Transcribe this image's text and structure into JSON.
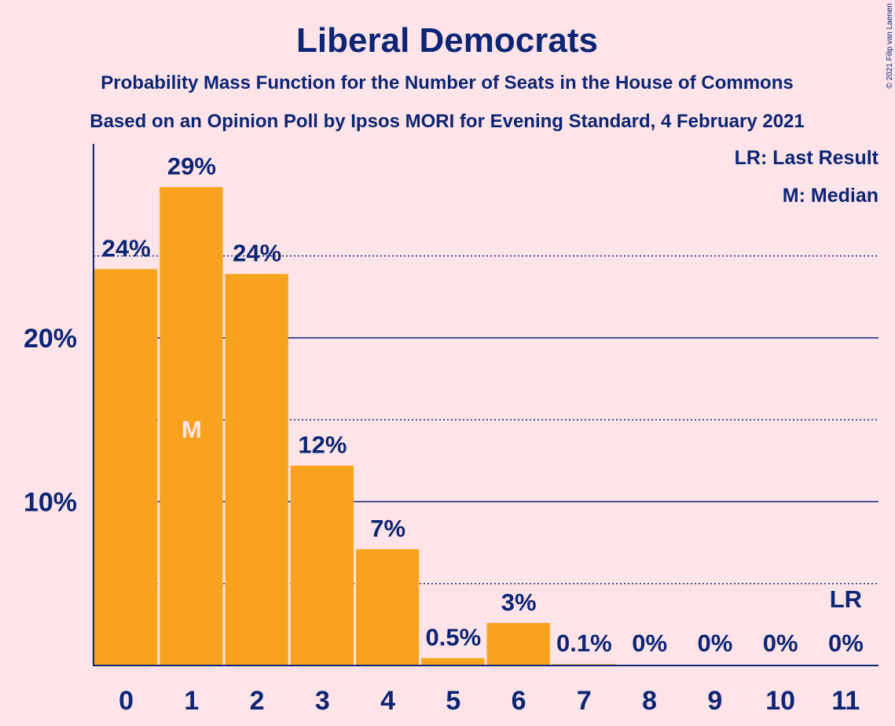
{
  "colors": {
    "background": "#fde4e8",
    "bar": "#f9a21e",
    "text": "#0c2574",
    "median_label": "#fde4e8"
  },
  "copyright": "© 2021 Filip van Laenen",
  "chart_data": {
    "type": "bar",
    "title": "Liberal Democrats",
    "subtitle_1": "Probability Mass Function for the Number of Seats in the House of Commons",
    "subtitle_2": "Based on an Opinion Poll by Ipsos MORI for Evening Standard, 4 February 2021",
    "categories": [
      "0",
      "1",
      "2",
      "3",
      "4",
      "5",
      "6",
      "7",
      "8",
      "9",
      "10",
      "11"
    ],
    "values": [
      24.2,
      29.2,
      23.9,
      12.2,
      7.1,
      0.45,
      2.6,
      0.08,
      0,
      0,
      0,
      0
    ],
    "value_labels": [
      "24%",
      "29%",
      "24%",
      "12%",
      "7%",
      "0.5%",
      "3%",
      "0.1%",
      "0%",
      "0%",
      "0%",
      "0%"
    ],
    "ylim": [
      0,
      32
    ],
    "y_ticks": [
      {
        "value": 10,
        "label": "10%"
      },
      {
        "value": 20,
        "label": "20%"
      }
    ],
    "dotted_gridlines": [
      5,
      15,
      25
    ],
    "solid_gridlines": [
      10,
      20
    ],
    "median_category": "1",
    "median_marker": "M",
    "last_result_category": "11",
    "last_result_marker": "LR",
    "legend": [
      "LR: Last Result",
      "M: Median"
    ],
    "legend_position": "top-right"
  }
}
